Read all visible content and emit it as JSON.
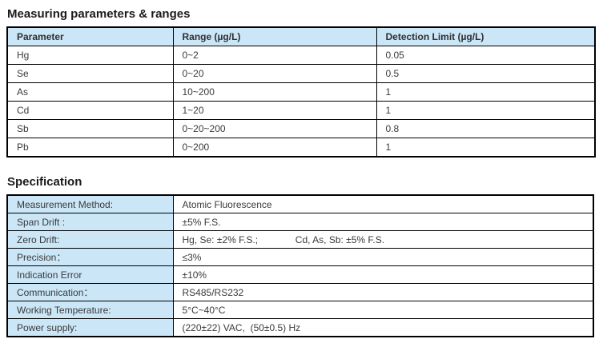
{
  "sections": {
    "measuring": {
      "title": "Measuring parameters & ranges",
      "headers": [
        "Parameter",
        "Range (µg/L)",
        "Detection Limit (µg/L)"
      ],
      "rows": [
        {
          "parameter": "Hg",
          "range": "0~2",
          "detection_limit": "0.05"
        },
        {
          "parameter": "Se",
          "range": "0~20",
          "detection_limit": "0.5"
        },
        {
          "parameter": "As",
          "range": "10~200",
          "detection_limit": "1"
        },
        {
          "parameter": "Cd",
          "range": "1~20",
          "detection_limit": "1"
        },
        {
          "parameter": "Sb",
          "range": "0~20~200",
          "detection_limit": "0.8"
        },
        {
          "parameter": "Pb",
          "range": "0~200",
          "detection_limit": "1"
        }
      ]
    },
    "specification": {
      "title": "Specification",
      "rows": [
        {
          "label": "Measurement Method:",
          "value": "Atomic Fluorescence"
        },
        {
          "label": "Span Drift :",
          "value": "±5% F.S."
        },
        {
          "label": "Zero Drift:",
          "value": "Hg, Se: ±2% F.S.;              Cd, As, Sb: ±5% F.S."
        },
        {
          "label": "Precision：",
          "value": "≤3%"
        },
        {
          "label": "Indication Error",
          "value": "±10%"
        },
        {
          "label": "Communication：",
          "value": "RS485/RS232"
        },
        {
          "label": "Working Temperature:",
          "value": "5°C~40°C"
        },
        {
          "label": "Power supply:",
          "value": "(220±22) VAC,  (50±0.5) Hz"
        }
      ]
    }
  },
  "colors": {
    "header_bg": "#cbe6f7",
    "border": "#000000",
    "text": "#3a3a3a"
  }
}
